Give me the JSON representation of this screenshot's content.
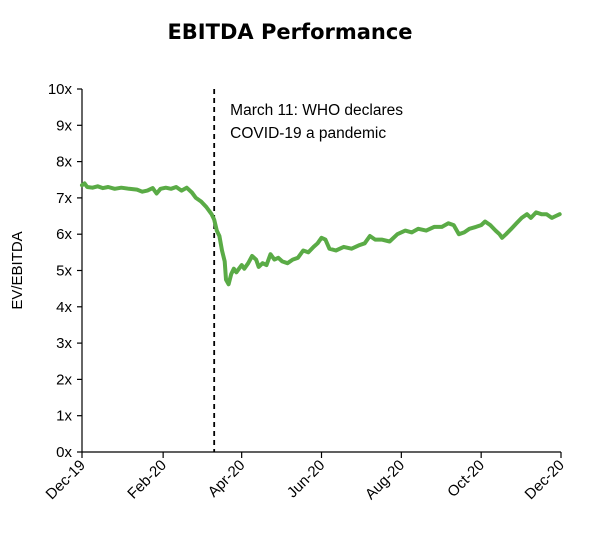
{
  "chart_data": {
    "type": "line",
    "title": "EBITDA Performance",
    "xlabel": "",
    "ylabel": "EV/EBITDA",
    "ylim": [
      0,
      10
    ],
    "y_ticks": [
      "0x",
      "1x",
      "2x",
      "3x",
      "4x",
      "5x",
      "6x",
      "7x",
      "8x",
      "9x",
      "10x"
    ],
    "x_range": [
      "2019-12-01",
      "2020-12-01"
    ],
    "x_ticks": [
      {
        "date": "2019-12-01",
        "label": "Dec-19"
      },
      {
        "date": "2020-02-01",
        "label": "Feb-20"
      },
      {
        "date": "2020-04-01",
        "label": "Apr-20"
      },
      {
        "date": "2020-06-01",
        "label": "Jun-20"
      },
      {
        "date": "2020-08-01",
        "label": "Aug-20"
      },
      {
        "date": "2020-10-01",
        "label": "Oct-20"
      },
      {
        "date": "2020-12-01",
        "label": "Dec-20"
      }
    ],
    "grid": false,
    "legend": "none",
    "series": [
      {
        "color": "#5aab46",
        "points": [
          [
            "2019-12-01",
            7.35
          ],
          [
            "2019-12-03",
            7.4
          ],
          [
            "2019-12-05",
            7.3
          ],
          [
            "2019-12-09",
            7.28
          ],
          [
            "2019-12-13",
            7.32
          ],
          [
            "2019-12-17",
            7.27
          ],
          [
            "2019-12-21",
            7.3
          ],
          [
            "2019-12-26",
            7.25
          ],
          [
            "2019-12-31",
            7.28
          ],
          [
            "2020-01-06",
            7.25
          ],
          [
            "2020-01-12",
            7.23
          ],
          [
            "2020-01-16",
            7.17
          ],
          [
            "2020-01-20",
            7.2
          ],
          [
            "2020-01-24",
            7.27
          ],
          [
            "2020-01-27",
            7.12
          ],
          [
            "2020-01-30",
            7.25
          ],
          [
            "2020-02-03",
            7.28
          ],
          [
            "2020-02-07",
            7.25
          ],
          [
            "2020-02-11",
            7.3
          ],
          [
            "2020-02-15",
            7.2
          ],
          [
            "2020-02-19",
            7.28
          ],
          [
            "2020-02-23",
            7.15
          ],
          [
            "2020-02-26",
            7.0
          ],
          [
            "2020-03-01",
            6.9
          ],
          [
            "2020-03-05",
            6.75
          ],
          [
            "2020-03-09",
            6.55
          ],
          [
            "2020-03-11",
            6.4
          ],
          [
            "2020-03-13",
            6.1
          ],
          [
            "2020-03-15",
            5.95
          ],
          [
            "2020-03-17",
            5.55
          ],
          [
            "2020-03-19",
            5.25
          ],
          [
            "2020-03-20",
            4.75
          ],
          [
            "2020-03-22",
            4.62
          ],
          [
            "2020-03-24",
            4.9
          ],
          [
            "2020-03-26",
            5.05
          ],
          [
            "2020-03-28",
            4.95
          ],
          [
            "2020-03-30",
            5.05
          ],
          [
            "2020-04-01",
            5.15
          ],
          [
            "2020-04-03",
            5.05
          ],
          [
            "2020-04-06",
            5.2
          ],
          [
            "2020-04-09",
            5.4
          ],
          [
            "2020-04-12",
            5.3
          ],
          [
            "2020-04-14",
            5.1
          ],
          [
            "2020-04-17",
            5.2
          ],
          [
            "2020-04-20",
            5.15
          ],
          [
            "2020-04-23",
            5.45
          ],
          [
            "2020-04-26",
            5.3
          ],
          [
            "2020-04-29",
            5.35
          ],
          [
            "2020-05-02",
            5.25
          ],
          [
            "2020-05-06",
            5.2
          ],
          [
            "2020-05-10",
            5.3
          ],
          [
            "2020-05-14",
            5.35
          ],
          [
            "2020-05-18",
            5.55
          ],
          [
            "2020-05-22",
            5.5
          ],
          [
            "2020-05-26",
            5.65
          ],
          [
            "2020-05-29",
            5.75
          ],
          [
            "2020-06-01",
            5.9
          ],
          [
            "2020-06-04",
            5.85
          ],
          [
            "2020-06-07",
            5.6
          ],
          [
            "2020-06-12",
            5.55
          ],
          [
            "2020-06-18",
            5.65
          ],
          [
            "2020-06-24",
            5.6
          ],
          [
            "2020-06-30",
            5.7
          ],
          [
            "2020-07-04",
            5.75
          ],
          [
            "2020-07-08",
            5.95
          ],
          [
            "2020-07-12",
            5.85
          ],
          [
            "2020-07-17",
            5.85
          ],
          [
            "2020-07-23",
            5.8
          ],
          [
            "2020-07-29",
            6.0
          ],
          [
            "2020-08-04",
            6.1
          ],
          [
            "2020-08-09",
            6.05
          ],
          [
            "2020-08-14",
            6.15
          ],
          [
            "2020-08-20",
            6.1
          ],
          [
            "2020-08-26",
            6.2
          ],
          [
            "2020-09-01",
            6.2
          ],
          [
            "2020-09-06",
            6.3
          ],
          [
            "2020-09-10",
            6.25
          ],
          [
            "2020-09-14",
            6.0
          ],
          [
            "2020-09-18",
            6.05
          ],
          [
            "2020-09-22",
            6.15
          ],
          [
            "2020-09-27",
            6.2
          ],
          [
            "2020-10-01",
            6.25
          ],
          [
            "2020-10-04",
            6.35
          ],
          [
            "2020-10-08",
            6.25
          ],
          [
            "2020-10-12",
            6.1
          ],
          [
            "2020-10-15",
            6.0
          ],
          [
            "2020-10-17",
            5.9
          ],
          [
            "2020-10-20",
            6.0
          ],
          [
            "2020-10-24",
            6.15
          ],
          [
            "2020-10-28",
            6.3
          ],
          [
            "2020-11-01",
            6.45
          ],
          [
            "2020-11-05",
            6.55
          ],
          [
            "2020-11-08",
            6.45
          ],
          [
            "2020-11-12",
            6.6
          ],
          [
            "2020-11-16",
            6.55
          ],
          [
            "2020-11-20",
            6.55
          ],
          [
            "2020-11-24",
            6.45
          ],
          [
            "2020-11-27",
            6.5
          ],
          [
            "2020-11-30",
            6.55
          ]
        ]
      }
    ],
    "annotations": [
      {
        "type": "vline",
        "date": "2020-03-11",
        "style": "dashed",
        "color": "#000000",
        "text_lines": [
          "March 11: WHO declares",
          "COVID-19 a pandemic"
        ]
      }
    ]
  }
}
